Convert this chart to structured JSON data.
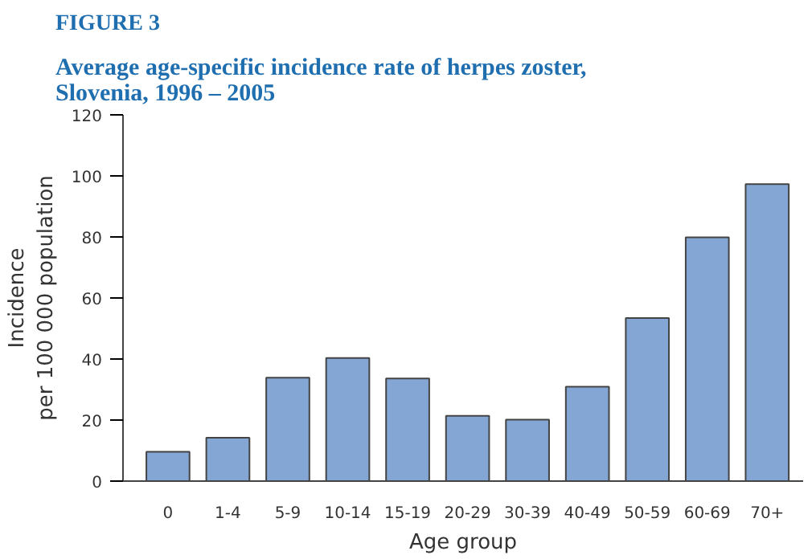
{
  "chart_data": {
    "type": "bar",
    "annotations": [
      "FIGURE 3"
    ],
    "title": "Average age-specific incidence rate of herpes zoster,\nSlovenia, 1996 – 2005",
    "xlabel": "Age group",
    "ylabel": "Incidence\nper 100 000 population",
    "categories": [
      "0",
      "1-4",
      "5-9",
      "10-14",
      "15-19",
      "20-29",
      "30-39",
      "40-49",
      "50-59",
      "60-69",
      "70+"
    ],
    "values": [
      9.6,
      14.2,
      33.9,
      40.3,
      33.6,
      21.4,
      20.1,
      30.9,
      53.4,
      79.9,
      97.3
    ],
    "color": "#84a6d4",
    "ylim": [
      0,
      120
    ],
    "yticks": [
      0,
      20,
      40,
      60,
      80,
      100,
      120
    ],
    "grid": false
  }
}
